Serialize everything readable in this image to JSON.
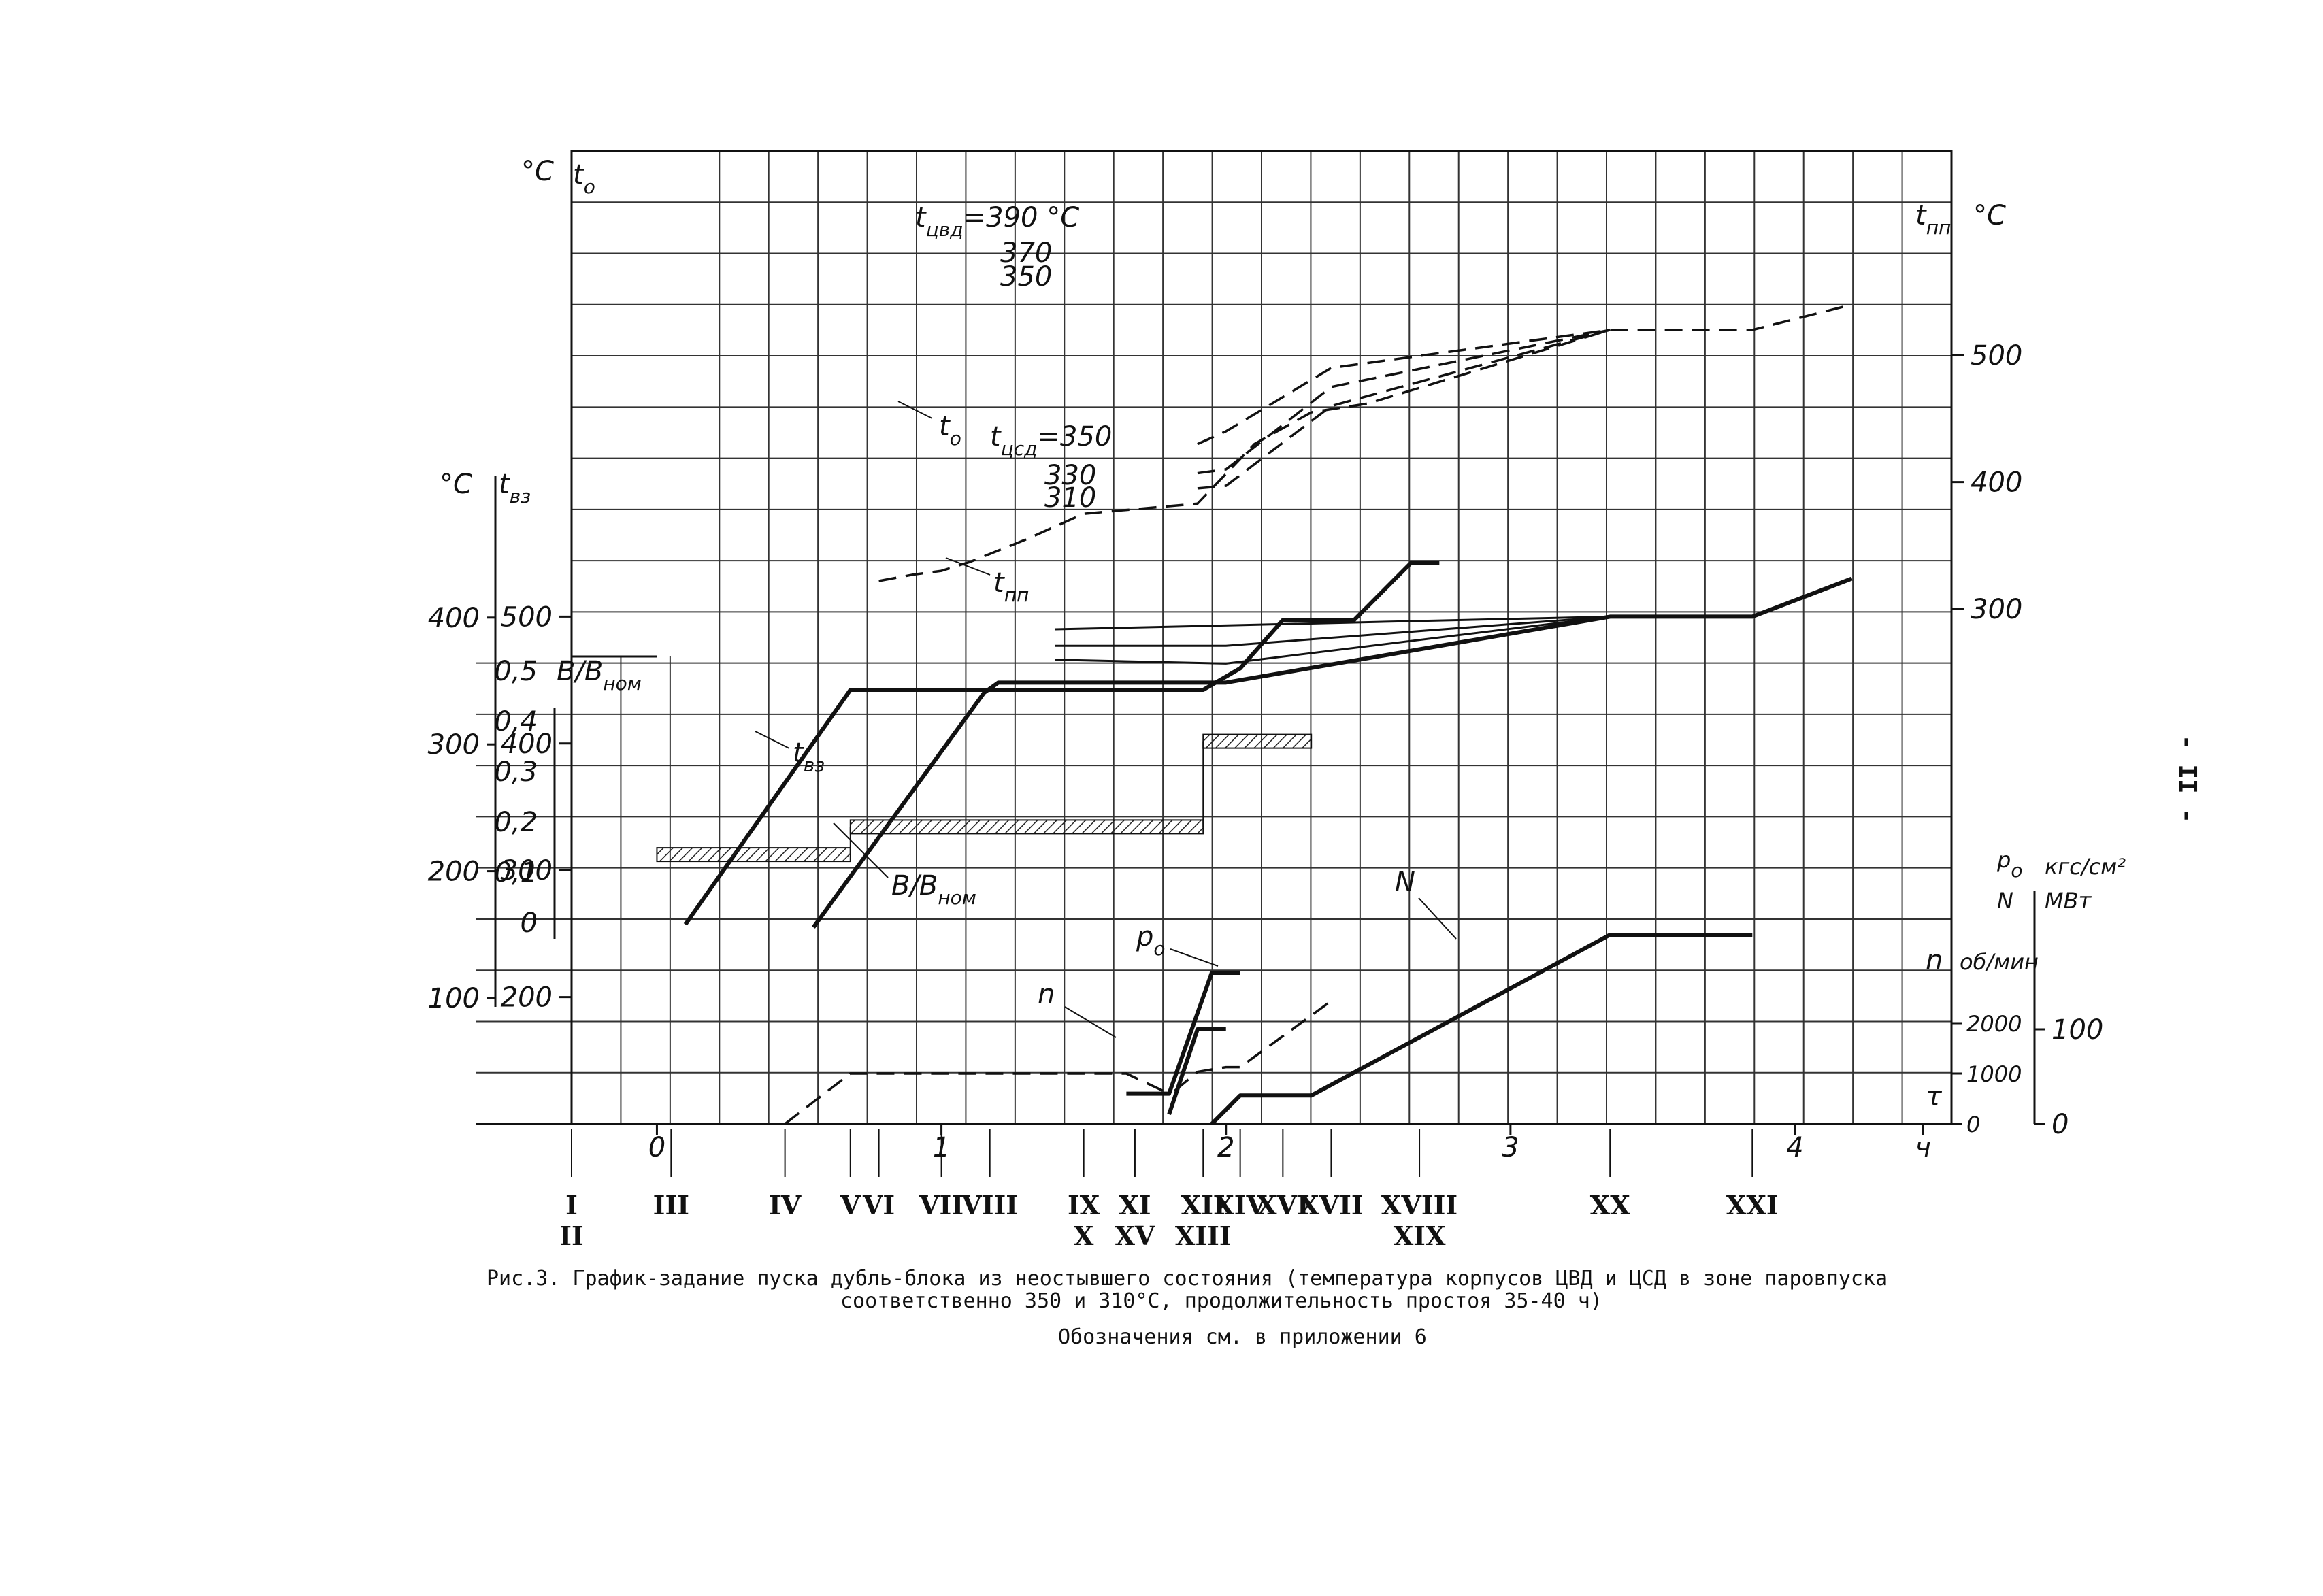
{
  "page_number": "- II -",
  "caption": {
    "line1": "Рис.3. График-задание пуска дубль-блока из неостывшего состояния (температура корпусов ЦВД и ЦСД в зоне паровпуска",
    "line2": "соответственно 350 и 310°С, продолжительность простоя 35-40 ч)",
    "line3": "Обозначения см. в приложении 6"
  },
  "chart_data": {
    "type": "line",
    "x_unit": "ч",
    "xlim": [
      -0.3,
      4.55
    ],
    "x_ticks": [
      {
        "v": 0,
        "label": "0"
      },
      {
        "v": 1,
        "label": "1"
      },
      {
        "v": 2,
        "label": "2"
      },
      {
        "v": 3,
        "label": "3"
      },
      {
        "v": 4,
        "label": "4"
      },
      {
        "v": 4.45,
        "label": "ч"
      }
    ],
    "events": [
      {
        "label": "I",
        "label2": "II",
        "x": -0.3
      },
      {
        "label": "III",
        "label2": "",
        "x": 0.05
      },
      {
        "label": "IV",
        "label2": "",
        "x": 0.45
      },
      {
        "label": "V",
        "label2": "",
        "x": 0.68
      },
      {
        "label": "VI",
        "label2": "",
        "x": 0.78
      },
      {
        "label": "VII",
        "label2": "",
        "x": 1.0
      },
      {
        "label": "VIII",
        "label2": "",
        "x": 1.17
      },
      {
        "label": "IX",
        "label2": "X",
        "x": 1.5
      },
      {
        "label": "XI",
        "label2": "XV",
        "x": 1.68
      },
      {
        "label": "XII",
        "label2": "XIII",
        "x": 1.92
      },
      {
        "label": "XIV",
        "label2": "",
        "x": 2.05
      },
      {
        "label": "XVI",
        "label2": "",
        "x": 2.2
      },
      {
        "label": "XVII",
        "label2": "",
        "x": 2.37
      },
      {
        "label": "XVIII",
        "label2": "XIX",
        "x": 2.68
      },
      {
        "label": "XX",
        "label2": "",
        "x": 3.35
      },
      {
        "label": "XXI",
        "label2": "",
        "x": 3.85
      }
    ],
    "axes": {
      "t0": {
        "unit": "°C",
        "name": "t",
        "sub": "о",
        "ticks": [
          500,
          400,
          300,
          200
        ]
      },
      "tvz": {
        "unit": "°C",
        "name": "t",
        "sub": "вз",
        "ticks": [
          400,
          300,
          200,
          100
        ]
      },
      "b": {
        "name": "B/B",
        "sub": "ном",
        "ticks": [
          "0,5",
          "0,4",
          "0,3",
          "0,2",
          "0,1",
          "0"
        ]
      },
      "tpp": {
        "unit": "°C",
        "name": "t",
        "sub": "пп",
        "ticks": [
          500,
          400,
          300
        ]
      },
      "pN": {
        "name1": "p",
        "sub1": "о",
        "name2": "N",
        "unit1": "кгс/см²",
        "unit2": "МВт",
        "ticks": [
          100,
          0
        ]
      },
      "n": {
        "name": "n",
        "unit": "об/мин",
        "ticks": [
          2000,
          1000,
          0
        ]
      },
      "tau": {
        "name": "τ"
      }
    },
    "curve_labels": {
      "t0": {
        "text": "t",
        "sub": "о"
      },
      "tcvd": {
        "text": "t",
        "sub": "цвд",
        "suffix": "=390 °С"
      },
      "tcvd_370": "370",
      "tcvd_350": "350",
      "tcsd": {
        "text": "t",
        "sub": "цсд",
        "suffix": "=350"
      },
      "tcsd_330": "330",
      "tcsd_310": "310",
      "tpp": {
        "text": "t",
        "sub": "пп"
      },
      "tvz": {
        "text": "t",
        "sub": "вз"
      },
      "b": {
        "text": "B/B",
        "sub": "ном"
      },
      "p0": {
        "text": "p",
        "sub": "о"
      },
      "n": "n",
      "N": "N"
    },
    "series": [
      {
        "id": "t0",
        "axis": "t0",
        "style": "solid-thick",
        "points": [
          [
            0.55,
            255
          ],
          [
            1.15,
            440
          ],
          [
            1.2,
            448
          ],
          [
            2.0,
            448
          ],
          [
            3.35,
            500
          ],
          [
            3.85,
            500
          ],
          [
            4.2,
            530
          ]
        ]
      },
      {
        "id": "tcvd_390",
        "axis": "t0",
        "style": "solid",
        "points": [
          [
            1.4,
            490
          ],
          [
            3.35,
            500
          ]
        ]
      },
      {
        "id": "tcvd_370",
        "axis": "t0",
        "style": "solid",
        "points": [
          [
            1.4,
            477
          ],
          [
            2.0,
            477
          ],
          [
            3.35,
            500
          ]
        ]
      },
      {
        "id": "tcvd_350",
        "axis": "t0",
        "style": "solid",
        "points": [
          [
            1.4,
            466
          ],
          [
            2.0,
            463
          ],
          [
            3.35,
            500
          ]
        ]
      },
      {
        "id": "tpp",
        "axis": "tpp",
        "style": "dashed",
        "points": [
          [
            0.78,
            322
          ],
          [
            0.9,
            327
          ],
          [
            1.0,
            330
          ],
          [
            1.1,
            337
          ],
          [
            1.3,
            355
          ],
          [
            1.5,
            375
          ],
          [
            1.75,
            380
          ],
          [
            1.9,
            383
          ],
          [
            2.1,
            430
          ],
          [
            2.3,
            455
          ],
          [
            2.5,
            462
          ],
          [
            3.35,
            520
          ],
          [
            3.85,
            520
          ],
          [
            4.2,
            540
          ]
        ]
      },
      {
        "id": "tcsd_350",
        "axis": "tpp",
        "style": "dashed",
        "points": [
          [
            1.9,
            430
          ],
          [
            2.0,
            440
          ],
          [
            2.37,
            490
          ],
          [
            3.35,
            520
          ]
        ]
      },
      {
        "id": "tcsd_330",
        "axis": "tpp",
        "style": "dashed",
        "points": [
          [
            1.9,
            407
          ],
          [
            2.0,
            410
          ],
          [
            2.37,
            475
          ],
          [
            3.35,
            520
          ]
        ]
      },
      {
        "id": "tcsd_310",
        "axis": "tpp",
        "style": "dashed",
        "points": [
          [
            1.9,
            395
          ],
          [
            2.0,
            397
          ],
          [
            2.37,
            460
          ],
          [
            3.35,
            520
          ]
        ]
      },
      {
        "id": "tvz",
        "axis": "tvz",
        "style": "solid-thick",
        "points": [
          [
            0.1,
            158
          ],
          [
            0.68,
            343
          ],
          [
            1.92,
            343
          ],
          [
            2.05,
            360
          ],
          [
            2.2,
            398
          ],
          [
            2.45,
            398
          ],
          [
            2.65,
            443
          ],
          [
            2.75,
            443
          ]
        ]
      },
      {
        "id": "b",
        "axis": "b",
        "style": "hatched-band",
        "points": [
          [
            0.0,
            0.135
          ],
          [
            0.68,
            0.135
          ],
          [
            0.68,
            0.19
          ],
          [
            1.92,
            0.19
          ],
          [
            1.92,
            0.36
          ],
          [
            2.3,
            0.36
          ]
        ]
      },
      {
        "id": "p0",
        "axis": "pN",
        "style": "dashed",
        "points": [
          [
            1.82,
            35
          ],
          [
            1.9,
            55
          ],
          [
            2.0,
            60
          ],
          [
            2.05,
            60
          ],
          [
            2.37,
            130
          ]
        ]
      },
      {
        "id": "p0_solid",
        "axis": "pN",
        "style": "solid-thick",
        "points": [
          [
            1.8,
            10
          ],
          [
            1.9,
            100
          ],
          [
            2.0,
            100
          ]
        ]
      },
      {
        "id": "N",
        "axis": "pN",
        "style": "solid-thick",
        "points": [
          [
            1.95,
            0
          ],
          [
            2.05,
            30
          ],
          [
            2.3,
            30
          ],
          [
            3.35,
            200
          ],
          [
            3.85,
            200
          ]
        ]
      },
      {
        "id": "n",
        "axis": "n",
        "style": "solid-thick",
        "points": [
          [
            1.65,
            600
          ],
          [
            1.8,
            600
          ],
          [
            1.95,
            3000
          ],
          [
            2.05,
            3000
          ]
        ]
      },
      {
        "id": "tau",
        "axis": "tau",
        "style": "dashed",
        "points": [
          [
            0.45,
            0
          ],
          [
            0.68,
            1000
          ],
          [
            1.65,
            1000
          ],
          [
            1.8,
            600
          ]
        ]
      }
    ]
  }
}
